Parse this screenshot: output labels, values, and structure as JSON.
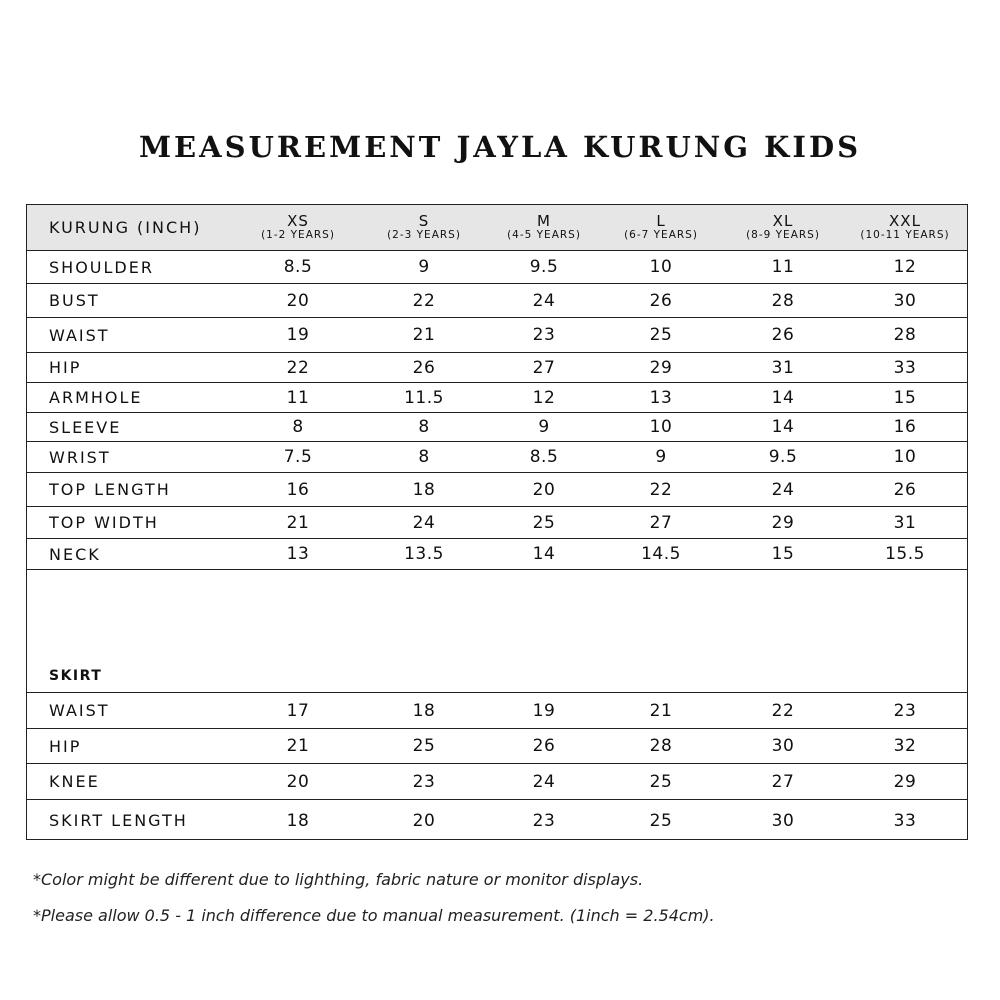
{
  "title": "MEASUREMENT JAYLA KURUNG KIDS",
  "header": {
    "label": "KURUNG (INCH)",
    "sizes": [
      {
        "size": "XS",
        "age": "(1-2 YEARS)"
      },
      {
        "size": "S",
        "age": "(2-3 YEARS)"
      },
      {
        "size": "M",
        "age": "(4-5 YEARS)"
      },
      {
        "size": "L",
        "age": "(6-7 YEARS)"
      },
      {
        "size": "XL",
        "age": "(8-9 YEARS)"
      },
      {
        "size": "XXL",
        "age": "(10-11 YEARS)"
      }
    ]
  },
  "kurung_rows": [
    {
      "label": "SHOULDER",
      "values": [
        "8.5",
        "9",
        "9.5",
        "10",
        "11",
        "12"
      ]
    },
    {
      "label": "BUST",
      "values": [
        "20",
        "22",
        "24",
        "26",
        "28",
        "30"
      ]
    },
    {
      "label": "WAIST",
      "values": [
        "19",
        "21",
        "23",
        "25",
        "26",
        "28"
      ]
    },
    {
      "label": "HIP",
      "values": [
        "22",
        "26",
        "27",
        "29",
        "31",
        "33"
      ]
    },
    {
      "label": "ARMHOLE",
      "values": [
        "11",
        "11.5",
        "12",
        "13",
        "14",
        "15"
      ]
    },
    {
      "label": "SLEEVE",
      "values": [
        "8",
        "8",
        "9",
        "10",
        "14",
        "16"
      ]
    },
    {
      "label": "WRIST",
      "values": [
        "7.5",
        "8",
        "8.5",
        "9",
        "9.5",
        "10"
      ]
    },
    {
      "label": "TOP LENGTH",
      "values": [
        "16",
        "18",
        "20",
        "22",
        "24",
        "26"
      ]
    },
    {
      "label": "TOP WIDTH",
      "values": [
        "21",
        "24",
        "25",
        "27",
        "29",
        "31"
      ]
    },
    {
      "label": "NECK",
      "values": [
        "13",
        "13.5",
        "14",
        "14.5",
        "15",
        "15.5"
      ]
    }
  ],
  "skirt_section": "SKIRT",
  "skirt_rows": [
    {
      "label": "WAIST",
      "values": [
        "17",
        "18",
        "19",
        "21",
        "22",
        "23"
      ]
    },
    {
      "label": "HIP",
      "values": [
        "21",
        "25",
        "26",
        "28",
        "30",
        "32"
      ]
    },
    {
      "label": "KNEE",
      "values": [
        "20",
        "23",
        "24",
        "25",
        "27",
        "29"
      ]
    },
    {
      "label": "SKIRT LENGTH",
      "values": [
        "18",
        "20",
        "23",
        "25",
        "30",
        "33"
      ]
    }
  ],
  "notes": [
    "*Color might be different due to lighthing, fabric nature or monitor displays.",
    "*Please allow 0.5 - 1 inch difference due to manual measurement. (1inch = 2.54cm)."
  ]
}
